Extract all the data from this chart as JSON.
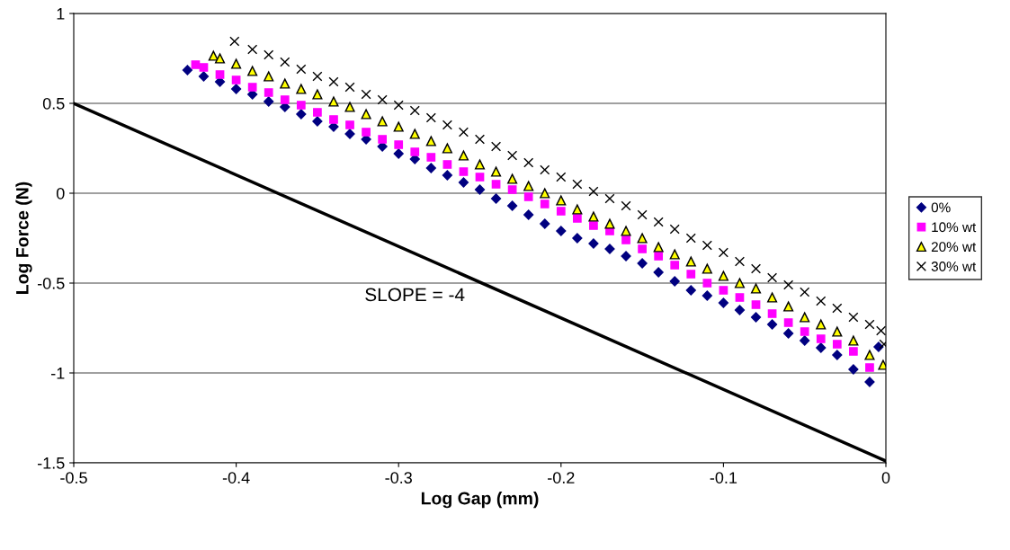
{
  "chart_data": {
    "type": "scatter",
    "xlabel": "Log Gap (mm)",
    "ylabel": "Log Force (N)",
    "xlim": [
      -0.5,
      0
    ],
    "ylim": [
      -1.5,
      1
    ],
    "xticks": [
      -0.5,
      -0.4,
      -0.3,
      -0.2,
      -0.1,
      0
    ],
    "yticks": [
      -1.5,
      -1,
      -0.5,
      0,
      0.5,
      1
    ],
    "grid": "y",
    "legend": "right",
    "annotations": [
      "SLOPE = -4"
    ],
    "series": [
      {
        "name": "0%",
        "color": "#000080",
        "marker": "diamond",
        "x": [
          -0.43,
          -0.42,
          -0.41,
          -0.4,
          -0.39,
          -0.38,
          -0.37,
          -0.36,
          -0.35,
          -0.34,
          -0.33,
          -0.32,
          -0.31,
          -0.3,
          -0.29,
          -0.28,
          -0.27,
          -0.26,
          -0.25,
          -0.24,
          -0.23,
          -0.22,
          -0.21,
          -0.2,
          -0.19,
          -0.18,
          -0.17,
          -0.16,
          -0.15,
          -0.14,
          -0.13,
          -0.12,
          -0.11,
          -0.1,
          -0.09,
          -0.08,
          -0.07,
          -0.06,
          -0.05,
          -0.04,
          -0.03,
          -0.02,
          -0.01,
          -0.0045
        ],
        "values": [
          0.685,
          0.65,
          0.62,
          0.58,
          0.55,
          0.51,
          0.48,
          0.44,
          0.4,
          0.37,
          0.33,
          0.3,
          0.26,
          0.22,
          0.19,
          0.14,
          0.1,
          0.06,
          0.02,
          -0.03,
          -0.07,
          -0.12,
          -0.17,
          -0.21,
          -0.25,
          -0.28,
          -0.31,
          -0.35,
          -0.39,
          -0.44,
          -0.49,
          -0.54,
          -0.57,
          -0.61,
          -0.65,
          -0.69,
          -0.73,
          -0.78,
          -0.82,
          -0.86,
          -0.9,
          -0.98,
          -1.05,
          -0.855
        ]
      },
      {
        "name": "10% wt",
        "color": "#ff00ff",
        "marker": "square",
        "x": [
          -0.425,
          -0.42,
          -0.41,
          -0.4,
          -0.39,
          -0.38,
          -0.37,
          -0.36,
          -0.35,
          -0.34,
          -0.33,
          -0.32,
          -0.31,
          -0.3,
          -0.29,
          -0.28,
          -0.27,
          -0.26,
          -0.25,
          -0.24,
          -0.23,
          -0.22,
          -0.21,
          -0.2,
          -0.19,
          -0.18,
          -0.17,
          -0.16,
          -0.15,
          -0.14,
          -0.13,
          -0.12,
          -0.11,
          -0.1,
          -0.09,
          -0.08,
          -0.07,
          -0.06,
          -0.05,
          -0.04,
          -0.03,
          -0.02,
          -0.01
        ],
        "values": [
          0.715,
          0.7,
          0.66,
          0.63,
          0.59,
          0.56,
          0.52,
          0.49,
          0.45,
          0.41,
          0.38,
          0.34,
          0.3,
          0.27,
          0.23,
          0.2,
          0.16,
          0.12,
          0.09,
          0.05,
          0.02,
          -0.02,
          -0.06,
          -0.1,
          -0.14,
          -0.18,
          -0.21,
          -0.26,
          -0.31,
          -0.35,
          -0.4,
          -0.45,
          -0.5,
          -0.54,
          -0.58,
          -0.62,
          -0.67,
          -0.72,
          -0.77,
          -0.81,
          -0.84,
          -0.88,
          -0.97
        ]
      },
      {
        "name": "20% wt",
        "color": "#ffff00",
        "marker": "triangle",
        "x": [
          -0.414,
          -0.41,
          -0.4,
          -0.39,
          -0.38,
          -0.37,
          -0.36,
          -0.35,
          -0.34,
          -0.33,
          -0.32,
          -0.31,
          -0.3,
          -0.29,
          -0.28,
          -0.27,
          -0.26,
          -0.25,
          -0.24,
          -0.23,
          -0.22,
          -0.21,
          -0.2,
          -0.19,
          -0.18,
          -0.17,
          -0.16,
          -0.15,
          -0.14,
          -0.13,
          -0.12,
          -0.11,
          -0.1,
          -0.09,
          -0.08,
          -0.07,
          -0.06,
          -0.05,
          -0.04,
          -0.03,
          -0.02,
          -0.01,
          -0.0017
        ],
        "values": [
          0.765,
          0.75,
          0.72,
          0.68,
          0.65,
          0.61,
          0.58,
          0.55,
          0.51,
          0.48,
          0.44,
          0.4,
          0.37,
          0.33,
          0.29,
          0.25,
          0.21,
          0.16,
          0.12,
          0.08,
          0.04,
          0.0,
          -0.04,
          -0.09,
          -0.13,
          -0.17,
          -0.21,
          -0.25,
          -0.3,
          -0.34,
          -0.38,
          -0.42,
          -0.46,
          -0.5,
          -0.53,
          -0.58,
          -0.63,
          -0.69,
          -0.73,
          -0.77,
          -0.82,
          -0.9,
          -0.955
        ]
      },
      {
        "name": "30% wt",
        "color": "#000000",
        "marker": "cross",
        "x": [
          -0.401,
          -0.39,
          -0.38,
          -0.37,
          -0.36,
          -0.35,
          -0.34,
          -0.33,
          -0.32,
          -0.31,
          -0.3,
          -0.29,
          -0.28,
          -0.27,
          -0.26,
          -0.25,
          -0.24,
          -0.23,
          -0.22,
          -0.21,
          -0.2,
          -0.19,
          -0.18,
          -0.17,
          -0.16,
          -0.15,
          -0.14,
          -0.13,
          -0.12,
          -0.11,
          -0.1,
          -0.09,
          -0.08,
          -0.07,
          -0.06,
          -0.05,
          -0.04,
          -0.03,
          -0.02,
          -0.01,
          -0.003,
          -0.0011
        ],
        "values": [
          0.845,
          0.8,
          0.77,
          0.73,
          0.69,
          0.65,
          0.62,
          0.59,
          0.55,
          0.52,
          0.49,
          0.46,
          0.42,
          0.38,
          0.34,
          0.3,
          0.26,
          0.21,
          0.17,
          0.13,
          0.09,
          0.05,
          0.01,
          -0.03,
          -0.07,
          -0.12,
          -0.16,
          -0.2,
          -0.25,
          -0.29,
          -0.33,
          -0.38,
          -0.42,
          -0.47,
          -0.51,
          -0.55,
          -0.6,
          -0.64,
          -0.69,
          -0.73,
          -0.765,
          -0.84
        ]
      },
      {
        "type": "line",
        "color": "#000000",
        "marker": "none",
        "x": [
          -0.5,
          0
        ],
        "values": [
          0.5,
          -1.49
        ]
      }
    ]
  }
}
